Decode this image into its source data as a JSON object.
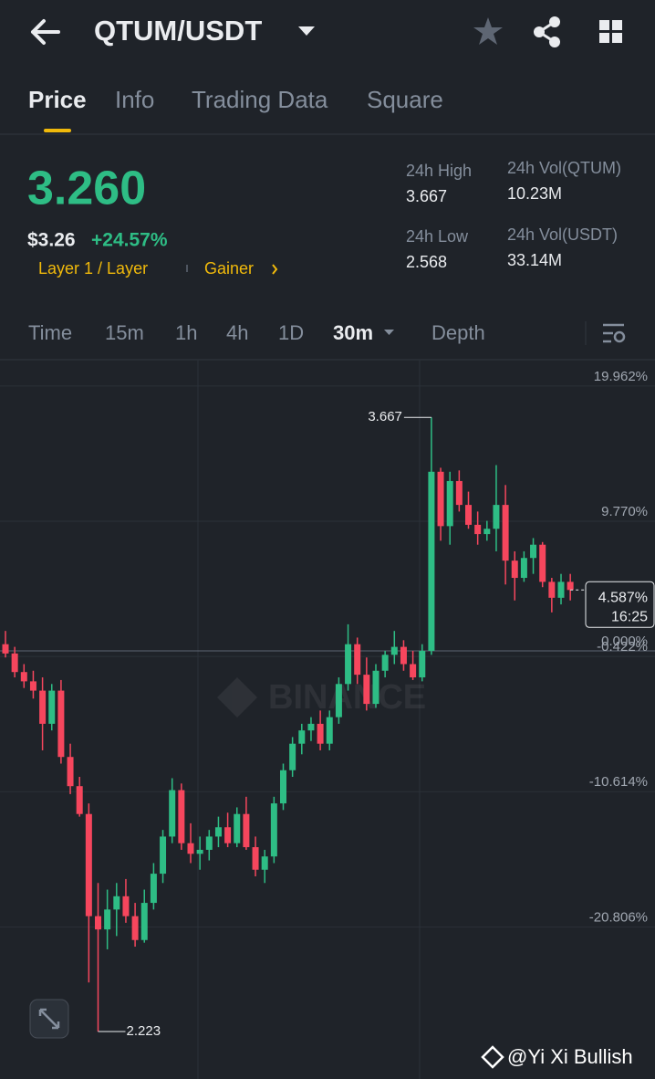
{
  "header": {
    "title": "QTUM/USDT"
  },
  "tabs": [
    "Price",
    "Info",
    "Trading Data",
    "Square"
  ],
  "ticker": {
    "price": "3.260",
    "price_usd": "$3.26",
    "change": "+24.57%",
    "tags": [
      "Layer 1 / Layer",
      "Gainer"
    ],
    "stats": [
      {
        "label": "24h High",
        "value": "3.667"
      },
      {
        "label": "24h Vol(QTUM)",
        "value": "10.23M"
      },
      {
        "label": "24h Low",
        "value": "2.568"
      },
      {
        "label": "24h Vol(USDT)",
        "value": "33.14M"
      }
    ]
  },
  "intervals": [
    "Time",
    "15m",
    "1h",
    "4h",
    "1D",
    "30m",
    "Depth"
  ],
  "chart_data": {
    "type": "candlestick",
    "up_color": "#2ebd85",
    "down_color": "#f6465d",
    "watermark": "BINANCE",
    "ylim": [
      -31.45,
      21.88
    ],
    "yticks": [
      {
        "value": 19.962,
        "label": "19.962%"
      },
      {
        "value": 9.77,
        "label": "9.770%"
      },
      {
        "value": 0,
        "label": "0.000%"
      },
      {
        "value": -0.422,
        "label": "-0.422%"
      },
      {
        "value": -10.614,
        "label": "-10.614%"
      },
      {
        "value": -20.806,
        "label": "-20.806%"
      }
    ],
    "open": [
      0.5,
      -0.2,
      -1.6,
      -2.3,
      -3.0,
      -5.5,
      -3.0,
      -8.0,
      -10.2,
      -12.3,
      -20.0,
      -21.0,
      -19.5,
      -18.5,
      -20.0,
      -21.8,
      -19.0,
      -16.8,
      -14.0,
      -10.5,
      -14.5,
      -15.3,
      -15.0,
      -14.0,
      -13.3,
      -14.5,
      -12.3,
      -14.8,
      -16.5,
      -15.5,
      -11.5,
      -9.0,
      -7.0,
      -6.0,
      -5.5,
      -7.0,
      -5.0,
      -2.5,
      0.5,
      -1.8,
      -4.0,
      -1.5,
      -0.3,
      0.3,
      -1.0,
      -2.0,
      0.0,
      13.5,
      9.4,
      12.8,
      11.0,
      9.5,
      8.8,
      9.2,
      11.0,
      6.8,
      5.5,
      7.0,
      8.0,
      5.2,
      4.0,
      5.2
    ],
    "high": [
      1.5,
      0.3,
      -1.0,
      -1.5,
      -2.0,
      -2.5,
      -2.2,
      -7.0,
      -9.5,
      -11.5,
      -17.5,
      -18.0,
      -17.5,
      -17.2,
      -19.0,
      -18.0,
      -16.0,
      -13.5,
      -9.6,
      -10.0,
      -13.0,
      -14.0,
      -13.5,
      -12.5,
      -12.2,
      -11.8,
      -11.0,
      -14.0,
      -15.0,
      -11.0,
      -8.5,
      -6.5,
      -5.5,
      -5.0,
      -4.5,
      -4.5,
      -2.0,
      2.0,
      1.0,
      -0.5,
      -1.0,
      0.0,
      1.5,
      0.8,
      0.0,
      0.5,
      17.6,
      13.8,
      13.5,
      13.6,
      12.0,
      10.5,
      9.8,
      14.0,
      12.5,
      7.5,
      7.5,
      8.5,
      8.2,
      5.5,
      5.8,
      5.8
    ],
    "low": [
      -0.5,
      -2.0,
      -2.8,
      -3.6,
      -7.5,
      -6.0,
      -8.5,
      -10.8,
      -12.5,
      -25.0,
      -28.7,
      -22.5,
      -21.5,
      -20.5,
      -22.3,
      -22.0,
      -19.5,
      -17.5,
      -14.5,
      -15.0,
      -16.0,
      -16.5,
      -15.8,
      -14.8,
      -14.8,
      -14.8,
      -15.0,
      -17.0,
      -17.5,
      -16.0,
      -12.0,
      -9.5,
      -7.8,
      -6.8,
      -7.5,
      -7.5,
      -5.5,
      -3.0,
      -2.5,
      -4.5,
      -4.3,
      -2.0,
      -1.0,
      -1.5,
      -2.2,
      -2.3,
      -0.3,
      8.3,
      8.0,
      10.5,
      9.2,
      8.0,
      8.3,
      7.5,
      5.0,
      3.8,
      5.2,
      5.8,
      4.8,
      2.9,
      3.5,
      3.8
    ],
    "close": [
      -0.2,
      -1.6,
      -2.3,
      -3.0,
      -5.5,
      -3.0,
      -8.0,
      -10.2,
      -12.3,
      -20.0,
      -21.0,
      -19.5,
      -18.5,
      -20.0,
      -21.8,
      -19.0,
      -16.8,
      -14.0,
      -10.5,
      -14.5,
      -15.3,
      -15.0,
      -14.0,
      -13.3,
      -14.5,
      -12.3,
      -14.8,
      -16.5,
      -15.5,
      -11.5,
      -9.0,
      -7.0,
      -6.0,
      -5.5,
      -7.0,
      -5.0,
      -2.5,
      0.5,
      -1.8,
      -4.0,
      -1.5,
      -0.3,
      0.3,
      -1.0,
      -2.0,
      0.0,
      13.5,
      9.4,
      12.8,
      11.0,
      9.5,
      8.8,
      9.2,
      11.0,
      6.8,
      5.5,
      7.0,
      8.0,
      5.2,
      4.0,
      5.2,
      4.587
    ],
    "high_label": "3.667",
    "low_label": "2.223",
    "current": {
      "value": 4.587,
      "label": "4.587%",
      "time": "16:25"
    }
  },
  "footer": {
    "credit": "@Yi Xi Bullish"
  }
}
